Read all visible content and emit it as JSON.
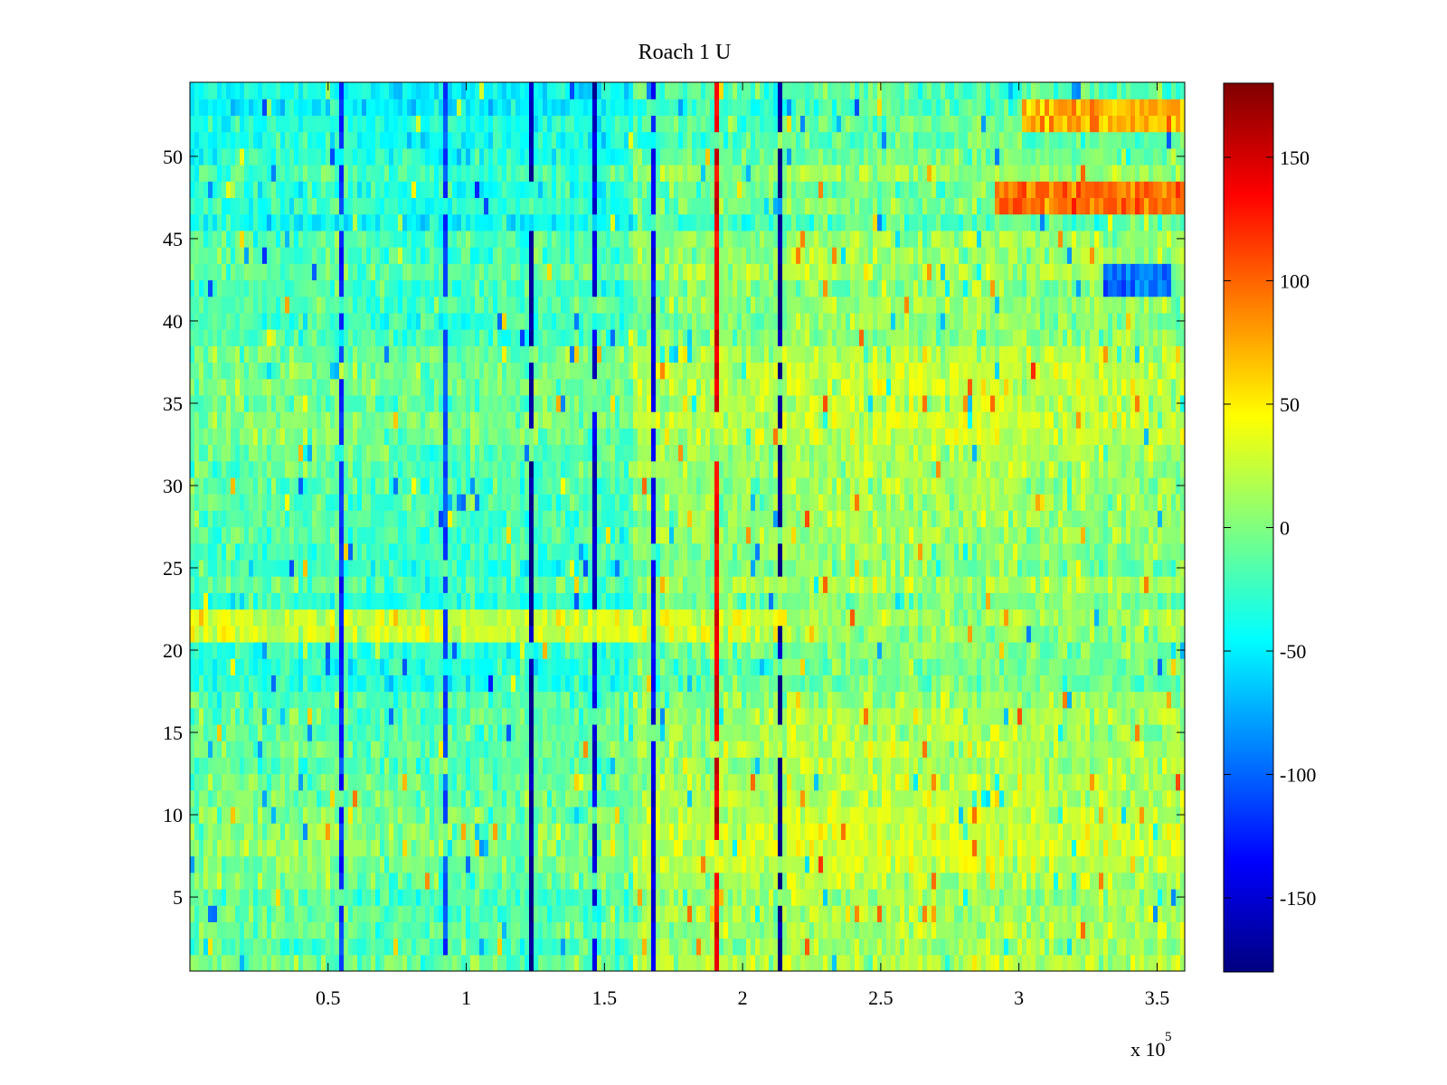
{
  "chart_data": {
    "type": "heatmap",
    "title": "Roach 1 U",
    "xlabel": "",
    "ylabel": "",
    "xlim": [
      0,
      360000
    ],
    "ylim": [
      0.5,
      54.5
    ],
    "x_ticks": [
      50000,
      100000,
      150000,
      200000,
      250000,
      300000,
      350000
    ],
    "x_tick_labels": [
      "0.5",
      "1",
      "1.5",
      "2",
      "2.5",
      "3",
      "3.5"
    ],
    "x_exponent_label": "x 10",
    "x_exponent_power": "5",
    "y_ticks": [
      5,
      10,
      15,
      20,
      25,
      30,
      35,
      40,
      45,
      50
    ],
    "y_tick_labels": [
      "5",
      "10",
      "15",
      "20",
      "25",
      "30",
      "35",
      "40",
      "45",
      "50"
    ],
    "rows": 54,
    "colorbar": {
      "colormap": "jet",
      "clim": [
        -180,
        180
      ],
      "ticks": [
        -150,
        -100,
        -50,
        0,
        50,
        100,
        150
      ],
      "tick_labels": [
        "-150",
        "-100",
        "-50",
        "0",
        "50",
        "100",
        "150"
      ]
    },
    "row_baseline": [
      0,
      -10,
      -5,
      -5,
      -10,
      0,
      5,
      10,
      10,
      5,
      0,
      0,
      -5,
      0,
      -5,
      -5,
      -10,
      -25,
      -25,
      -20,
      -15,
      -10,
      -20,
      -5,
      -20,
      -15,
      -10,
      -10,
      -10,
      -10,
      -5,
      -5,
      5,
      5,
      0,
      5,
      5,
      0,
      -15,
      -15,
      -10,
      -15,
      -5,
      -10,
      -10,
      -35,
      -20,
      -25,
      -10,
      -25,
      -30,
      -30,
      -40,
      -35
    ],
    "time_segments": [
      {
        "x_start": 0,
        "x_end": 60000,
        "offset": -5
      },
      {
        "x_start": 60000,
        "x_end": 120000,
        "offset": -10
      },
      {
        "x_start": 120000,
        "x_end": 160000,
        "offset": -8
      },
      {
        "x_start": 160000,
        "x_end": 215000,
        "offset": 15
      },
      {
        "x_start": 215000,
        "x_end": 300000,
        "offset": 22
      },
      {
        "x_start": 300000,
        "x_end": 360000,
        "offset": 18
      }
    ],
    "stripes": [
      {
        "x": 55000,
        "value": -120
      },
      {
        "x": 92000,
        "value": -110
      },
      {
        "x": 123000,
        "value": -170
      },
      {
        "x": 146000,
        "value": -150
      },
      {
        "x": 168000,
        "value": -140
      },
      {
        "x": 190000,
        "value": 140
      },
      {
        "x": 213000,
        "value": -175
      }
    ],
    "highlights": [
      {
        "x_start": 290000,
        "x_end": 360000,
        "row_start": 47,
        "row_end": 48,
        "value": 95
      },
      {
        "x_start": 300000,
        "x_end": 360000,
        "row_start": 52,
        "row_end": 53,
        "value": 75
      },
      {
        "x_start": 330000,
        "x_end": 355000,
        "row_start": 42,
        "row_end": 43,
        "value": -95
      },
      {
        "x_start": 0,
        "x_end": 215000,
        "row_start": 21,
        "row_end": 22,
        "value": 30
      }
    ]
  }
}
